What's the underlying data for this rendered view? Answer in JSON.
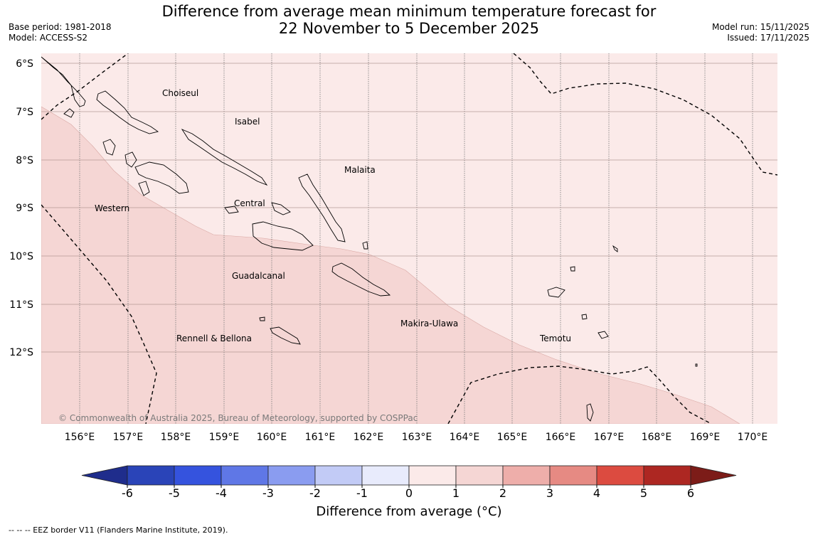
{
  "header": {
    "title_line1": "Difference from average mean minimum temperature forecast for",
    "title_line2": "22 November to 5 December 2025",
    "base_period": "Base period: 1981-2018",
    "model": "Model: ACCESS-S2",
    "model_run": "Model run: 15/11/2025",
    "issued": "Issued: 17/11/2025"
  },
  "map": {
    "lon_labels": [
      "156°E",
      "157°E",
      "158°E",
      "159°E",
      "160°E",
      "161°E",
      "162°E",
      "163°E",
      "164°E",
      "165°E",
      "166°E",
      "167°E",
      "168°E",
      "169°E",
      "170°E"
    ],
    "lat_labels": [
      "6°S",
      "7°S",
      "8°S",
      "9°S",
      "10°S",
      "11°S",
      "12°S"
    ],
    "regions": [
      "Choiseul",
      "Isabel",
      "Malaita",
      "Western",
      "Central",
      "Guadalcanal",
      "Makira-Ulawa",
      "Rennell & Bellona",
      "Temotu"
    ],
    "copyright": "© Commonwealth of Australia 2025, Bureau of Meteorology, supported by COSPPac",
    "fill_colors": {
      "anomaly_0_1": "#fbeae9",
      "anomaly_1_2": "#f5d6d4"
    }
  },
  "colorbar": {
    "ticks": [
      "-6",
      "-5",
      "-4",
      "-3",
      "-2",
      "-1",
      "0",
      "1",
      "2",
      "3",
      "4",
      "5",
      "6"
    ],
    "colors": [
      "#1f2d8c",
      "#2a44b8",
      "#3553de",
      "#5f77e6",
      "#8a9cf0",
      "#c2cbf6",
      "#e8ebfc",
      "#fbeae9",
      "#f5d6d4",
      "#eeaeaa",
      "#e68a83",
      "#dc4b40",
      "#ad2722",
      "#7c1c18"
    ],
    "label": "Difference from average (°C)"
  },
  "footer": {
    "eez_note": "--  --  -- EEZ border V11 (Flanders Marine Institute, 2019)."
  }
}
